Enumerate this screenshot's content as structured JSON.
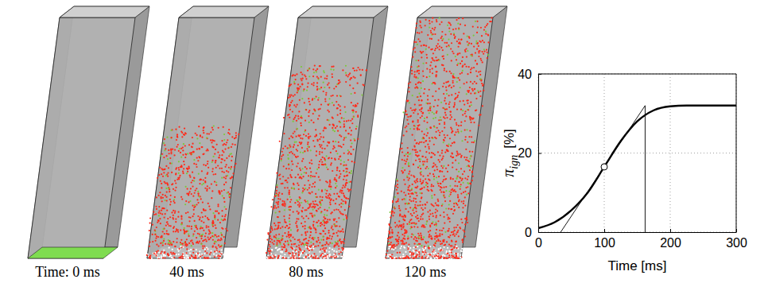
{
  "snapshots": {
    "labels": [
      "Time: 0 ms",
      "40 ms",
      "80 ms",
      "120 ms"
    ]
  },
  "chart_data": {
    "type": "line",
    "xlabel": "Time [ms]",
    "ylabel": {
      "symbol": "π",
      "subscript": "ign",
      "unit": "[%]"
    },
    "xlim": [
      0,
      300
    ],
    "ylim": [
      0,
      40
    ],
    "xticks": [
      0,
      100,
      200,
      300
    ],
    "yticks": [
      0,
      20,
      40
    ],
    "grid": true,
    "series": [
      {
        "x": [
          0,
          25,
          50,
          75,
          100,
          125,
          150,
          175,
          200,
          225,
          250,
          300
        ],
        "values": [
          1,
          2.5,
          5.5,
          10,
          16.5,
          23,
          28,
          30.8,
          31.8,
          32,
          32,
          32
        ],
        "color": "#000000",
        "line_style": "solid"
      },
      {
        "x": [
          34,
          162
        ],
        "values": [
          0,
          32
        ],
        "color": "#000000",
        "line_style": "solid"
      },
      {
        "x": [
          162,
          162
        ],
        "values": [
          0,
          32
        ],
        "color": "#000000",
        "line_style": "solid"
      },
      {
        "type": "scatter",
        "x": [
          100
        ],
        "values": [
          16.5
        ],
        "color": "#000000",
        "marker": "circle"
      }
    ]
  }
}
